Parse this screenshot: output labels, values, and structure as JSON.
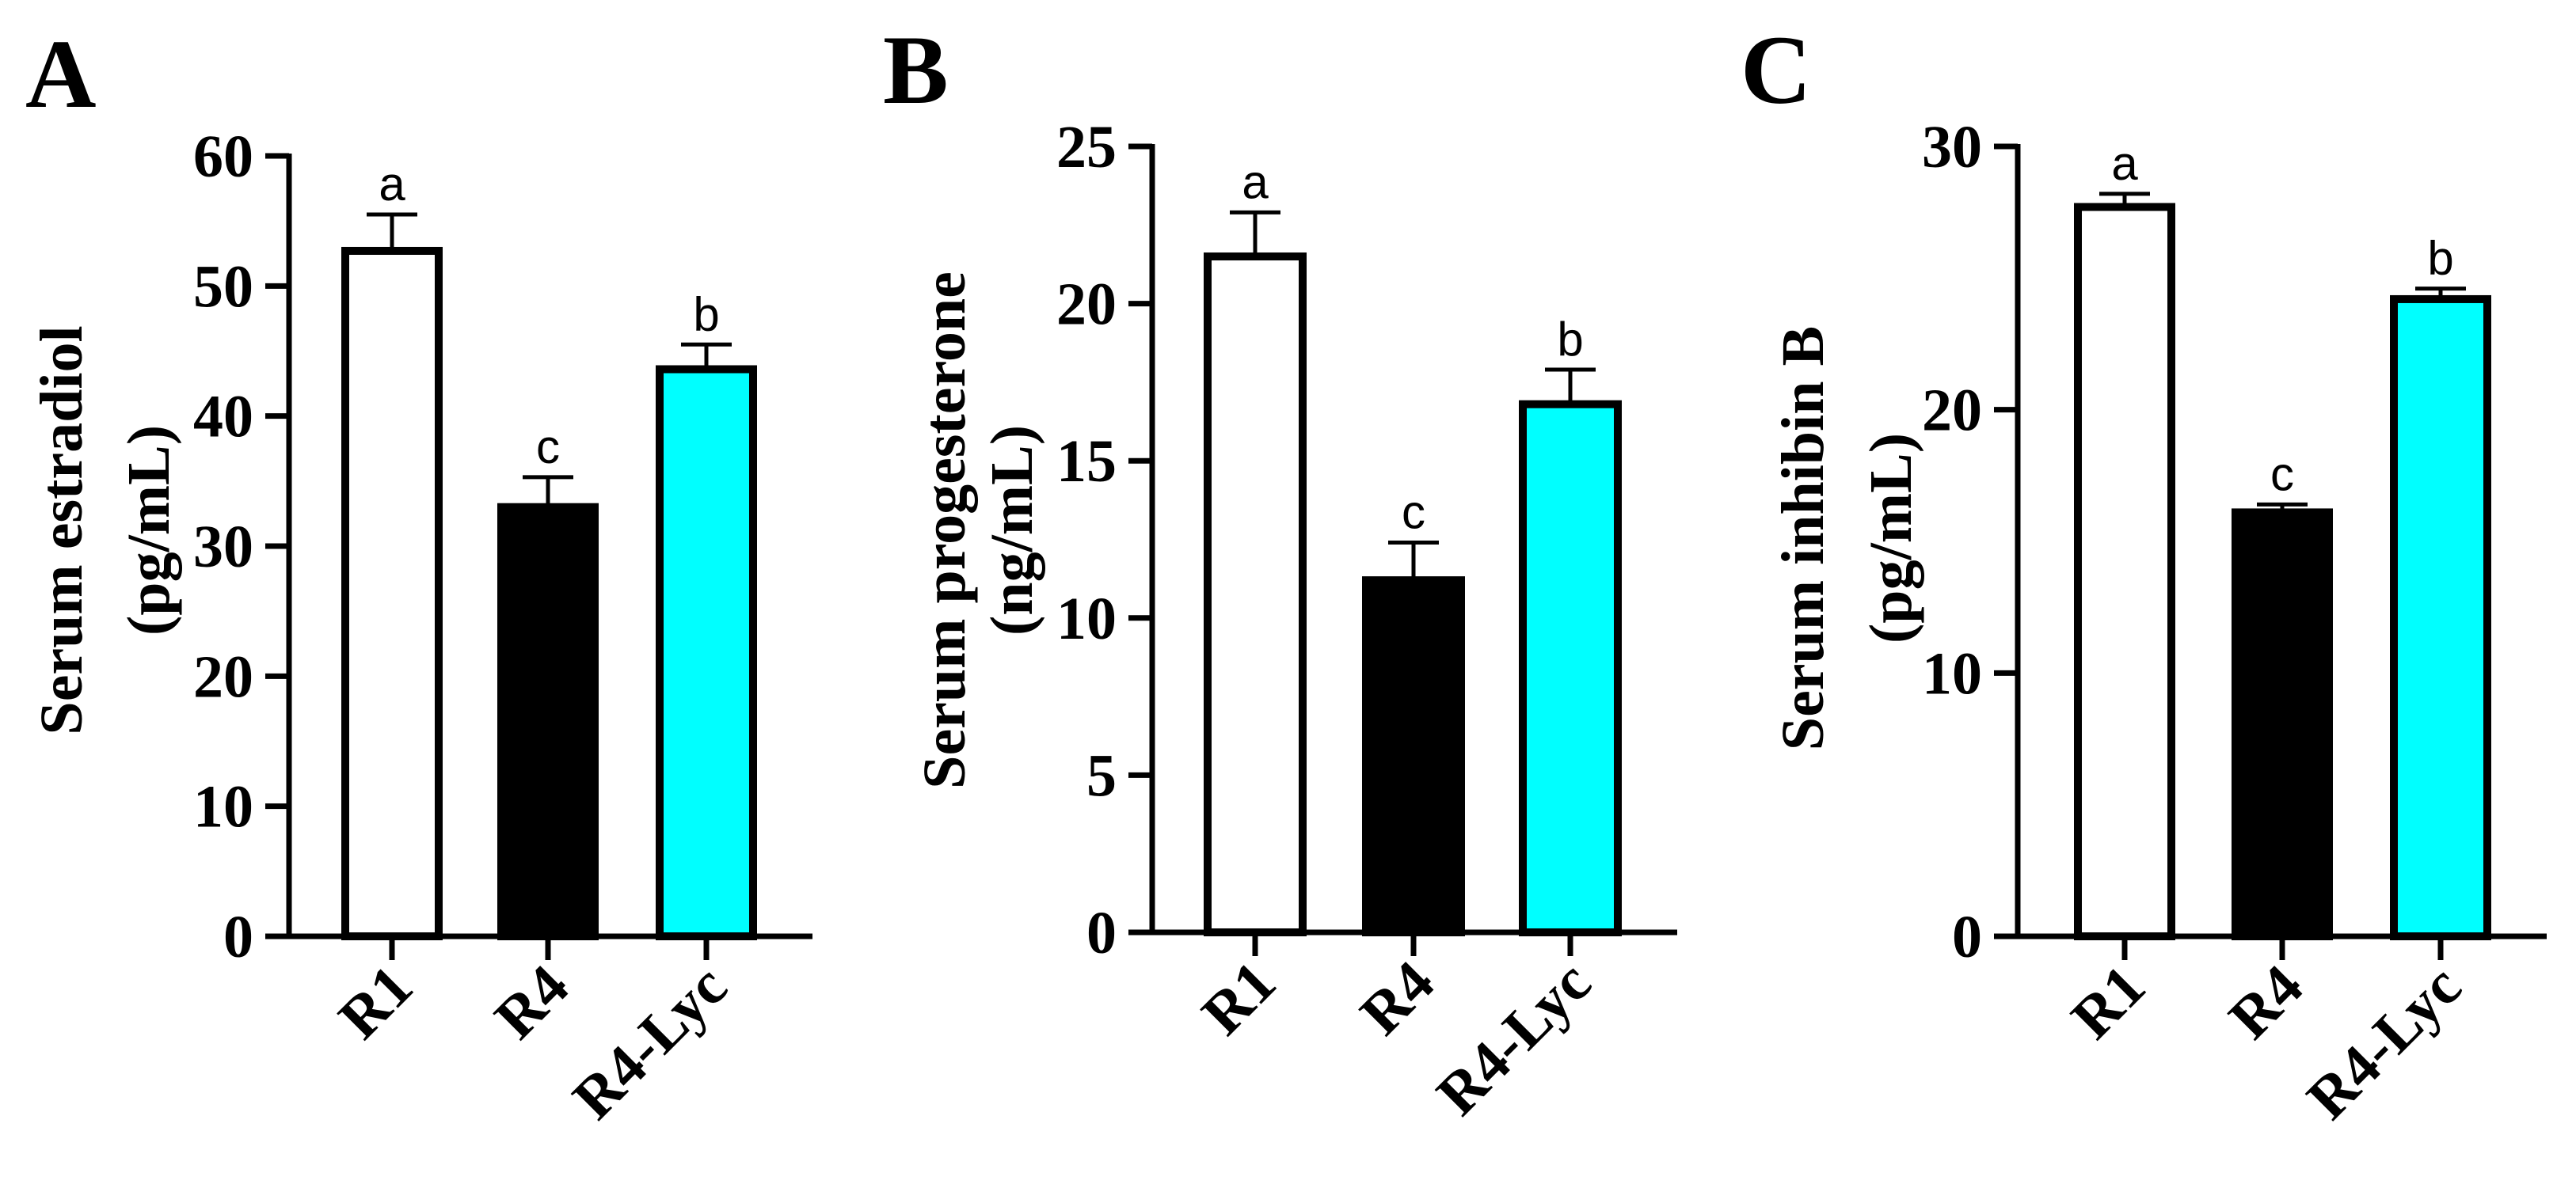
{
  "chart_data": [
    {
      "panel": "A",
      "type": "bar",
      "categories": [
        "R1",
        "R4",
        "R4-Lyc"
      ],
      "values": [
        52.7,
        33.0,
        43.6
      ],
      "errors": [
        2.8,
        2.3,
        1.9
      ],
      "significance": [
        "a",
        "c",
        "b"
      ],
      "ylabel_line1": "Serum estradiol",
      "ylabel_line2": "(pg/mL)",
      "ylim": [
        0,
        60
      ],
      "yticks": [
        0,
        10,
        20,
        30,
        40,
        50,
        60
      ],
      "bar_colors": [
        "#ffffff",
        "#000000",
        "#00ffff"
      ]
    },
    {
      "panel": "B",
      "type": "bar",
      "categories": [
        "R1",
        "R4",
        "R4-Lyc"
      ],
      "values": [
        21.5,
        11.2,
        16.8
      ],
      "errors": [
        1.4,
        1.2,
        1.1
      ],
      "significance": [
        "a",
        "c",
        "b"
      ],
      "ylabel_line1": "Serum progesterone",
      "ylabel_line2": "(ng/mL)",
      "ylim": [
        0,
        25
      ],
      "yticks": [
        0,
        5,
        10,
        15,
        20,
        25
      ],
      "bar_colors": [
        "#ffffff",
        "#000000",
        "#00ffff"
      ]
    },
    {
      "panel": "C",
      "type": "bar",
      "categories": [
        "R1",
        "R4",
        "R4-Lyc"
      ],
      "values": [
        27.7,
        16.1,
        24.2
      ],
      "errors": [
        0.5,
        0.3,
        0.4
      ],
      "significance": [
        "a",
        "c",
        "b"
      ],
      "ylabel_line1": "Serum inhibin B",
      "ylabel_line2": "(pg/mL)",
      "ylim": [
        0,
        30
      ],
      "yticks": [
        0,
        10,
        20,
        30
      ],
      "bar_colors": [
        "#ffffff",
        "#000000",
        "#00ffff"
      ]
    }
  ]
}
